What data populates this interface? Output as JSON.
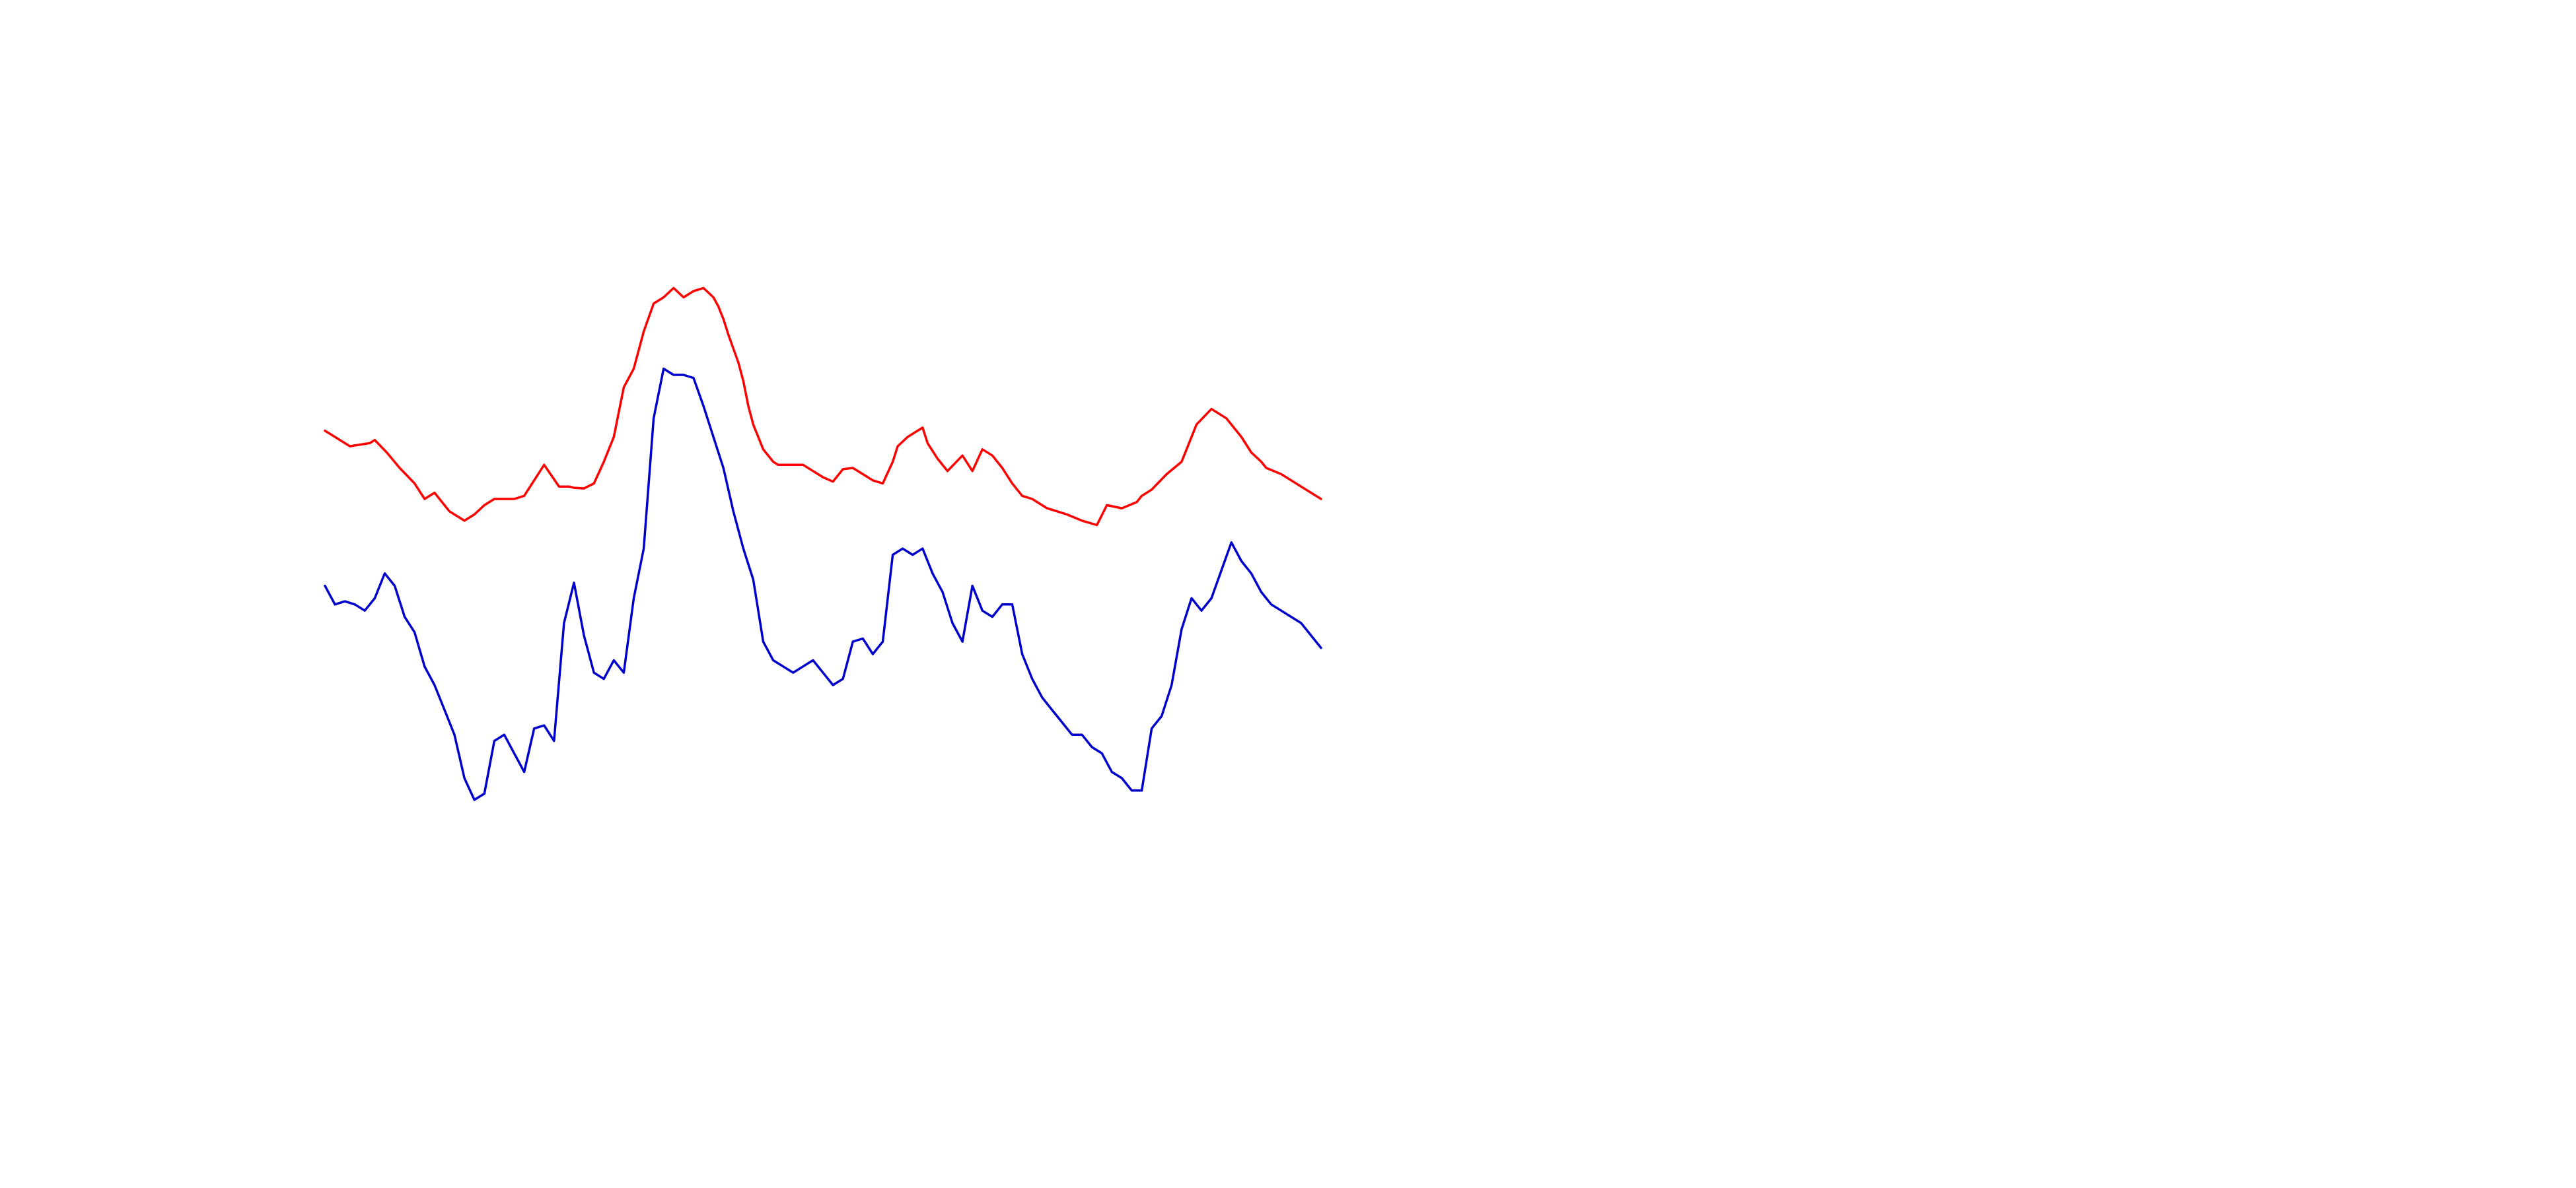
{
  "chart_data": {
    "type": "line",
    "title": "",
    "xlabel": "",
    "ylabel": "",
    "axes_visible": false,
    "grid": false,
    "legend": "none",
    "xlim": [
      0,
      1
    ],
    "ylim": [
      0,
      1
    ],
    "series": [
      {
        "color": "#ff0000",
        "x": [
          0.0,
          0.025,
          0.045,
          0.05,
          0.062,
          0.075,
          0.09,
          0.1,
          0.11,
          0.125,
          0.14,
          0.15,
          0.16,
          0.17,
          0.18,
          0.19,
          0.2,
          0.22,
          0.235,
          0.245,
          0.25,
          0.26,
          0.27,
          0.28,
          0.29,
          0.3,
          0.31,
          0.32,
          0.33,
          0.34,
          0.35,
          0.36,
          0.37,
          0.38,
          0.39,
          0.395,
          0.4,
          0.405,
          0.415,
          0.42,
          0.425,
          0.43,
          0.44,
          0.45,
          0.455,
          0.46,
          0.48,
          0.49,
          0.5,
          0.51,
          0.52,
          0.53,
          0.54,
          0.55,
          0.56,
          0.57,
          0.575,
          0.585,
          0.6,
          0.605,
          0.615,
          0.625,
          0.64,
          0.65,
          0.66,
          0.67,
          0.68,
          0.69,
          0.7,
          0.71,
          0.725,
          0.735,
          0.745,
          0.76,
          0.775,
          0.785,
          0.8,
          0.815,
          0.82,
          0.83,
          0.845,
          0.86,
          0.875,
          0.89,
          0.905,
          0.92,
          0.93,
          0.94,
          0.945,
          0.96,
          0.98,
          1.0
        ],
        "y": [
          0.71,
          0.685,
          0.69,
          0.695,
          0.675,
          0.65,
          0.625,
          0.6,
          0.61,
          0.58,
          0.565,
          0.575,
          0.59,
          0.6,
          0.6,
          0.6,
          0.605,
          0.655,
          0.62,
          0.62,
          0.618,
          0.617,
          0.625,
          0.66,
          0.7,
          0.78,
          0.81,
          0.87,
          0.915,
          0.925,
          0.94,
          0.925,
          0.935,
          0.94,
          0.925,
          0.91,
          0.89,
          0.865,
          0.82,
          0.79,
          0.75,
          0.72,
          0.68,
          0.66,
          0.655,
          0.655,
          0.655,
          0.645,
          0.635,
          0.628,
          0.648,
          0.65,
          0.64,
          0.63,
          0.625,
          0.66,
          0.685,
          0.7,
          0.715,
          0.69,
          0.665,
          0.645,
          0.67,
          0.645,
          0.68,
          0.67,
          0.65,
          0.625,
          0.605,
          0.6,
          0.585,
          0.58,
          0.575,
          0.565,
          0.558,
          0.59,
          0.585,
          0.595,
          0.605,
          0.615,
          0.64,
          0.66,
          0.72,
          0.745,
          0.73,
          0.7,
          0.675,
          0.66,
          0.65,
          0.64,
          0.62,
          0.6
        ]
      },
      {
        "color": "#0000cc",
        "x": [
          0.0,
          0.01,
          0.02,
          0.03,
          0.04,
          0.05,
          0.06,
          0.07,
          0.08,
          0.09,
          0.1,
          0.11,
          0.12,
          0.13,
          0.14,
          0.15,
          0.16,
          0.17,
          0.18,
          0.19,
          0.2,
          0.21,
          0.22,
          0.23,
          0.24,
          0.25,
          0.26,
          0.27,
          0.28,
          0.29,
          0.3,
          0.31,
          0.32,
          0.33,
          0.34,
          0.35,
          0.36,
          0.37,
          0.38,
          0.39,
          0.4,
          0.41,
          0.42,
          0.43,
          0.44,
          0.45,
          0.46,
          0.47,
          0.48,
          0.49,
          0.5,
          0.51,
          0.52,
          0.53,
          0.54,
          0.55,
          0.56,
          0.57,
          0.58,
          0.59,
          0.6,
          0.61,
          0.62,
          0.63,
          0.64,
          0.65,
          0.66,
          0.67,
          0.68,
          0.69,
          0.7,
          0.71,
          0.72,
          0.73,
          0.74,
          0.75,
          0.76,
          0.77,
          0.78,
          0.79,
          0.8,
          0.81,
          0.82,
          0.83,
          0.84,
          0.85,
          0.86,
          0.87,
          0.88,
          0.89,
          0.9,
          0.91,
          0.92,
          0.93,
          0.94,
          0.95,
          0.96,
          0.97,
          0.98,
          0.99,
          1.0
        ],
        "y": [
          0.46,
          0.43,
          0.435,
          0.43,
          0.42,
          0.44,
          0.48,
          0.46,
          0.41,
          0.385,
          0.33,
          0.3,
          0.26,
          0.22,
          0.15,
          0.115,
          0.125,
          0.21,
          0.22,
          0.19,
          0.16,
          0.23,
          0.235,
          0.21,
          0.4,
          0.465,
          0.38,
          0.32,
          0.31,
          0.34,
          0.32,
          0.44,
          0.52,
          0.73,
          0.81,
          0.8,
          0.8,
          0.795,
          0.75,
          0.7,
          0.65,
          0.58,
          0.52,
          0.47,
          0.37,
          0.34,
          0.33,
          0.32,
          0.33,
          0.34,
          0.32,
          0.3,
          0.31,
          0.37,
          0.375,
          0.35,
          0.37,
          0.51,
          0.52,
          0.51,
          0.52,
          0.48,
          0.45,
          0.4,
          0.37,
          0.46,
          0.42,
          0.41,
          0.43,
          0.43,
          0.35,
          0.31,
          0.28,
          0.26,
          0.24,
          0.22,
          0.22,
          0.2,
          0.19,
          0.16,
          0.15,
          0.13,
          0.13,
          0.23,
          0.25,
          0.3,
          0.39,
          0.44,
          0.42,
          0.44,
          0.485,
          0.53,
          0.5,
          0.48,
          0.45,
          0.43,
          0.42,
          0.41,
          0.4,
          0.38,
          0.36
        ]
      }
    ]
  }
}
